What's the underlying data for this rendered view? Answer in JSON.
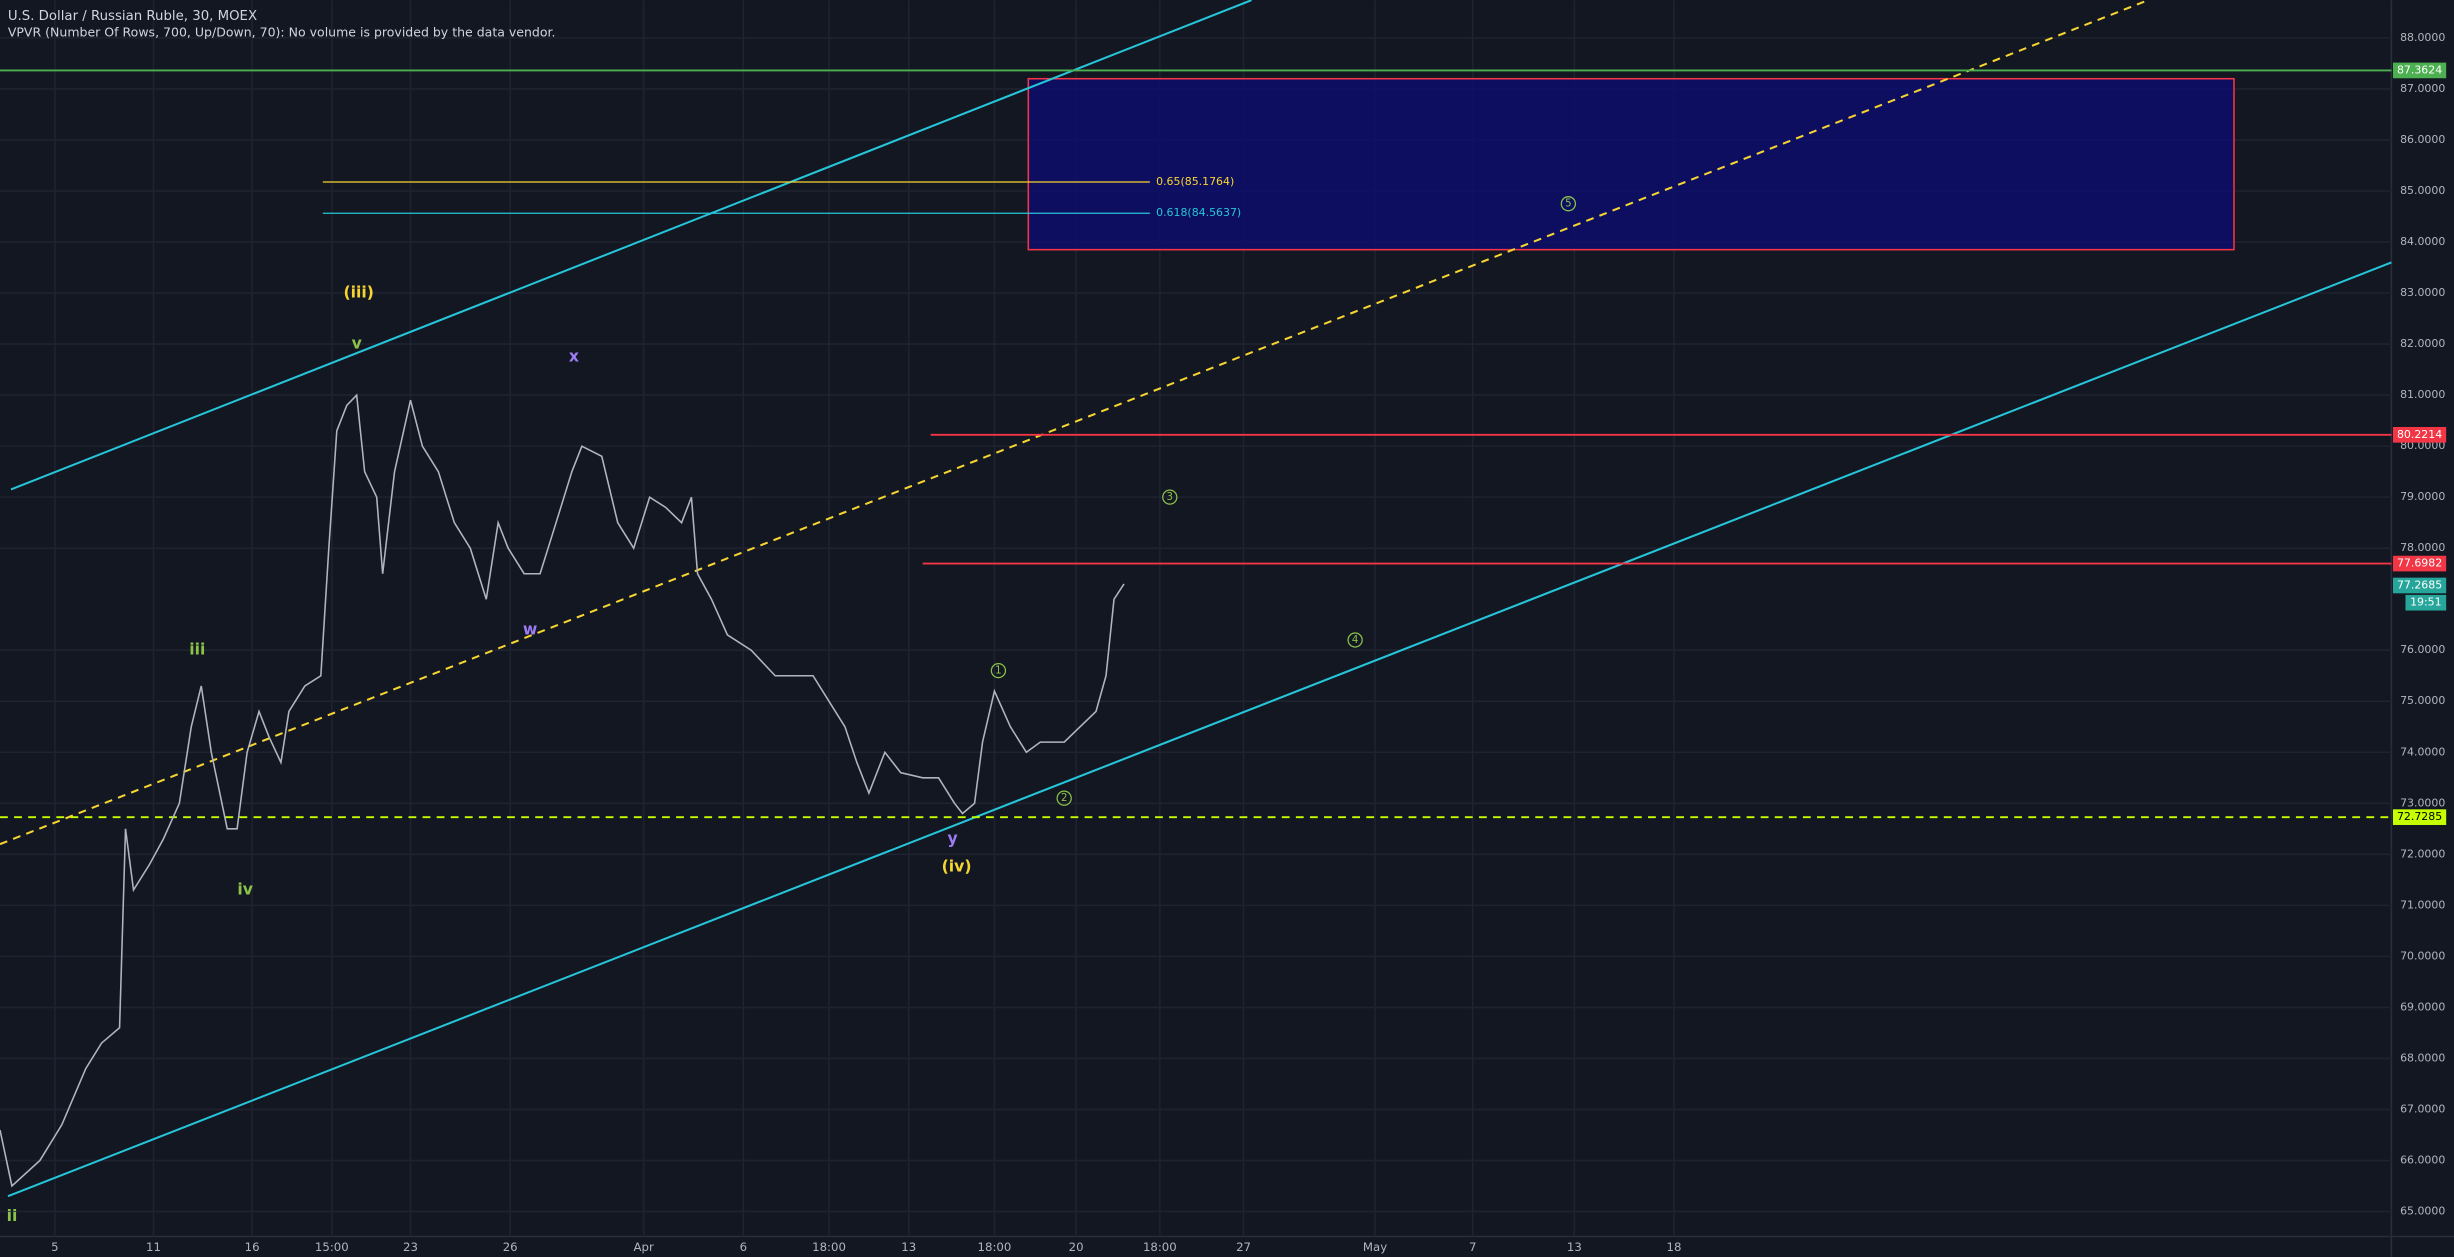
{
  "chart_data": {
    "type": "line",
    "title": "U.S. Dollar / Russian Ruble, 30, MOEX",
    "subtitle": "VPVR (Number Of Rows, 700, Up/Down, 70): No volume is provided by the data vendor.",
    "color": "#b2b5be",
    "x": [
      0,
      0.6,
      2.0,
      3.1,
      4.3,
      5.1,
      6.0,
      6.3,
      6.7,
      7.5,
      8.2,
      9.0,
      9.6,
      10.1,
      10.6,
      11.4,
      11.9,
      12.4,
      13.0,
      13.5,
      14.1,
      14.5,
      15.3,
      16.1,
      16.5,
      16.9,
      17.4,
      17.9,
      18.3,
      18.9,
      19.2,
      19.8,
      20.6,
      21.2,
      22.0,
      22.8,
      23.6,
      24.4,
      25.0,
      25.5,
      26.3,
      27.1,
      27.9,
      28.7,
      29.2,
      30.2,
      31.0,
      31.8,
      32.6,
      33.4,
      34.2,
      34.7,
      35.0,
      35.7,
      36.5,
      37.7,
      38.9,
      40.1,
      40.8,
      41.6,
      42.4,
      43.0,
      43.6,
      44.4,
      45.2,
      46.3,
      47.1,
      47.9,
      48.3,
      48.9,
      49.3,
      49.9,
      50.7,
      51.5,
      52.2,
      53.4,
      54.2,
      55.0,
      55.5,
      55.9,
      56.4
    ],
    "values": [
      66.6,
      65.5,
      66,
      66.7,
      67.8,
      68.3,
      68.6,
      72.5,
      71.3,
      71.8,
      72.3,
      73,
      74.5,
      75.3,
      74,
      72.5,
      72.5,
      74,
      74.8,
      74.3,
      73.8,
      74.8,
      75.3,
      75.5,
      78,
      80.3,
      80.8,
      81,
      79.5,
      79,
      77.5,
      79.5,
      80.9,
      80,
      79.5,
      78.5,
      78,
      77,
      78.5,
      78,
      77.5,
      77.5,
      78.5,
      79.5,
      80,
      79.8,
      78.5,
      78,
      79,
      78.8,
      78.5,
      79,
      77.5,
      77,
      76.3,
      76,
      75.5,
      75.5,
      75.5,
      75,
      74.5,
      73.8,
      73.2,
      74,
      73.6,
      73.5,
      73.5,
      73,
      72.8,
      73,
      74.2,
      75.2,
      74.5,
      74,
      74.2,
      74.2,
      74.5,
      74.8,
      75.5,
      77,
      77.3
    ],
    "xlim": [
      0,
      120
    ],
    "ylim": [
      64.51,
      88.74
    ],
    "grid": true,
    "xticks": [
      {
        "value": 2.75,
        "label": "5"
      },
      {
        "value": 7.7,
        "label": "11"
      },
      {
        "value": 12.65,
        "label": "16"
      },
      {
        "value": 16.65,
        "label": "15:00"
      },
      {
        "value": 20.6,
        "label": "23"
      },
      {
        "value": 25.6,
        "label": "26"
      },
      {
        "value": 32.3,
        "label": "Apr"
      },
      {
        "value": 37.3,
        "label": "6"
      },
      {
        "value": 41.6,
        "label": "18:00"
      },
      {
        "value": 45.6,
        "label": "13"
      },
      {
        "value": 49.9,
        "label": "18:00"
      },
      {
        "value": 54,
        "label": "20"
      },
      {
        "value": 58.2,
        "label": "18:00"
      },
      {
        "value": 62.4,
        "label": "27"
      },
      {
        "value": 69,
        "label": "May"
      },
      {
        "value": 73.9,
        "label": "7"
      },
      {
        "value": 79,
        "label": "13"
      },
      {
        "value": 84,
        "label": "18"
      }
    ],
    "yticks": [
      {
        "value": 65,
        "label": "65.0000"
      },
      {
        "value": 66,
        "label": "66.0000"
      },
      {
        "value": 67,
        "label": "67.0000"
      },
      {
        "value": 68,
        "label": "68.0000"
      },
      {
        "value": 69,
        "label": "69.0000"
      },
      {
        "value": 70,
        "label": "70.0000"
      },
      {
        "value": 71,
        "label": "71.0000"
      },
      {
        "value": 72,
        "label": "72.0000"
      },
      {
        "value": 73,
        "label": "73.0000"
      },
      {
        "value": 74,
        "label": "74.0000"
      },
      {
        "value": 75,
        "label": "75.0000"
      },
      {
        "value": 76,
        "label": "76.0000"
      },
      {
        "value": 78,
        "label": "78.0000"
      },
      {
        "value": 79,
        "label": "79.0000"
      },
      {
        "value": 80,
        "label": "80.0000"
      },
      {
        "value": 81,
        "label": "81.0000"
      },
      {
        "value": 82,
        "label": "82.0000"
      },
      {
        "value": 83,
        "label": "83.0000"
      },
      {
        "value": 84,
        "label": "84.0000"
      },
      {
        "value": 85,
        "label": "85.0000"
      },
      {
        "value": 86,
        "label": "86.0000"
      },
      {
        "value": 87,
        "label": "87.0000"
      },
      {
        "value": 88,
        "label": "88.0000"
      }
    ],
    "hlines": [
      {
        "value": 87.3624,
        "label": "87.3624",
        "color": "#4caf50",
        "x_start": 0,
        "dashed": false
      },
      {
        "value": 80.2214,
        "label": "80.2214",
        "color": "#f23645",
        "x_start": 46.7,
        "dashed": false
      },
      {
        "value": 77.6982,
        "label": "77.6982",
        "color": "#f23645",
        "x_start": 46.3,
        "dashed": false
      },
      {
        "value": 72.7285,
        "label": "72.7285",
        "color": "#c6ff00",
        "x_start": 0,
        "dashed": true
      }
    ],
    "last_price": {
      "value": 77.2685,
      "label": "77.2685",
      "countdown": "19:51",
      "color": "#26a69a"
    },
    "fib_levels": [
      {
        "value": 85.1764,
        "label": "0.65(85.1764)",
        "color": "#f7d531",
        "x": [
          16.2,
          57.7
        ]
      },
      {
        "value": 84.5637,
        "label": "0.618(84.5637)",
        "color": "#26c6da",
        "x": [
          16.2,
          57.7
        ]
      }
    ],
    "box": {
      "x": [
        51.6,
        112.1
      ],
      "values": [
        87.2,
        83.85
      ],
      "color": "#f23645"
    },
    "trendlines": [
      {
        "color": "#26c6da",
        "dashed": false,
        "x": [
          0.55,
          62.8
        ],
        "values": [
          79.15,
          88.74
        ]
      },
      {
        "color": "#26c6da",
        "dashed": false,
        "x": [
          0.4,
          120
        ],
        "values": [
          65.3,
          83.6
        ]
      },
      {
        "color": "#f7d531",
        "dashed": true,
        "x": [
          0,
          107.8
        ],
        "values": [
          72.2,
          88.74
        ]
      }
    ],
    "annotations": [
      {
        "text": "(iii)",
        "x": 18.0,
        "y": 83.0,
        "color": "#f7d531",
        "circled": false
      },
      {
        "text": "v",
        "x": 17.9,
        "y": 82.0,
        "color": "#8bc34a",
        "circled": false
      },
      {
        "text": "x",
        "x": 28.8,
        "y": 81.75,
        "color": "#9c7cf4",
        "circled": false
      },
      {
        "text": "iii",
        "x": 9.9,
        "y": 76.0,
        "color": "#8bc34a",
        "circled": false
      },
      {
        "text": "w",
        "x": 26.6,
        "y": 76.4,
        "color": "#9c7cf4",
        "circled": false
      },
      {
        "text": "iv",
        "x": 12.3,
        "y": 71.3,
        "color": "#8bc34a",
        "circled": false
      },
      {
        "text": "y",
        "x": 47.8,
        "y": 72.3,
        "color": "#9c7cf4",
        "circled": false
      },
      {
        "text": "(iv)",
        "x": 48.0,
        "y": 71.75,
        "color": "#f7d531",
        "circled": false
      },
      {
        "text": "ii",
        "x": 0.6,
        "y": 64.9,
        "color": "#8bc34a",
        "circled": false
      },
      {
        "text": "1",
        "x": 50.1,
        "y": 75.6,
        "color": "#8bc34a",
        "circled": true
      },
      {
        "text": "2",
        "x": 53.4,
        "y": 73.1,
        "color": "#8bc34a",
        "circled": true
      },
      {
        "text": "3",
        "x": 58.7,
        "y": 79.0,
        "color": "#8bc34a",
        "circled": true
      },
      {
        "text": "4",
        "x": 68.0,
        "y": 76.2,
        "color": "#8bc34a",
        "circled": true
      },
      {
        "text": "5",
        "x": 78.7,
        "y": 84.75,
        "color": "#8bc34a",
        "circled": true
      }
    ]
  }
}
